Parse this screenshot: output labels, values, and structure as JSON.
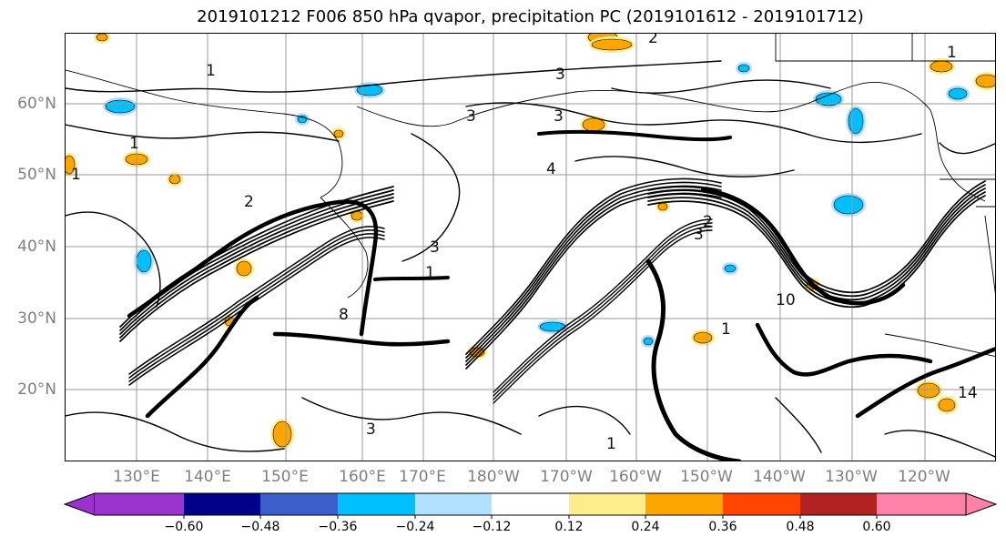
{
  "title": "2019101212 F006 850 hPa qvapor, precipitation PC (2019101612 - 2019101712)",
  "map": {
    "latitude_labels": [
      "60°N",
      "50°N",
      "40°N",
      "30°N",
      "20°N"
    ],
    "longitude_labels": [
      "130°E",
      "140°E",
      "150°E",
      "160°E",
      "170°E",
      "180°W",
      "170°W",
      "160°W",
      "150°W",
      "140°W",
      "130°W",
      "120°W"
    ],
    "gridlines": true,
    "coastlines": true,
    "contour_color": "#000000",
    "contour_labels": [
      "1",
      "2",
      "3",
      "4",
      "8",
      "10",
      "14"
    ]
  },
  "colorbar": {
    "ticks": [
      "−0.60",
      "−0.48",
      "−0.36",
      "−0.24",
      "−0.12",
      "0.12",
      "0.24",
      "0.36",
      "0.48",
      "0.60"
    ],
    "colors": [
      "#9a32cd",
      "#00008b",
      "#3a5fcd",
      "#00bfff",
      "#b0e2ff",
      "#ffffff",
      "#ffec8b",
      "#ffa500",
      "#ff4500",
      "#b22222",
      "#ff82ab"
    ],
    "extend": "both"
  }
}
